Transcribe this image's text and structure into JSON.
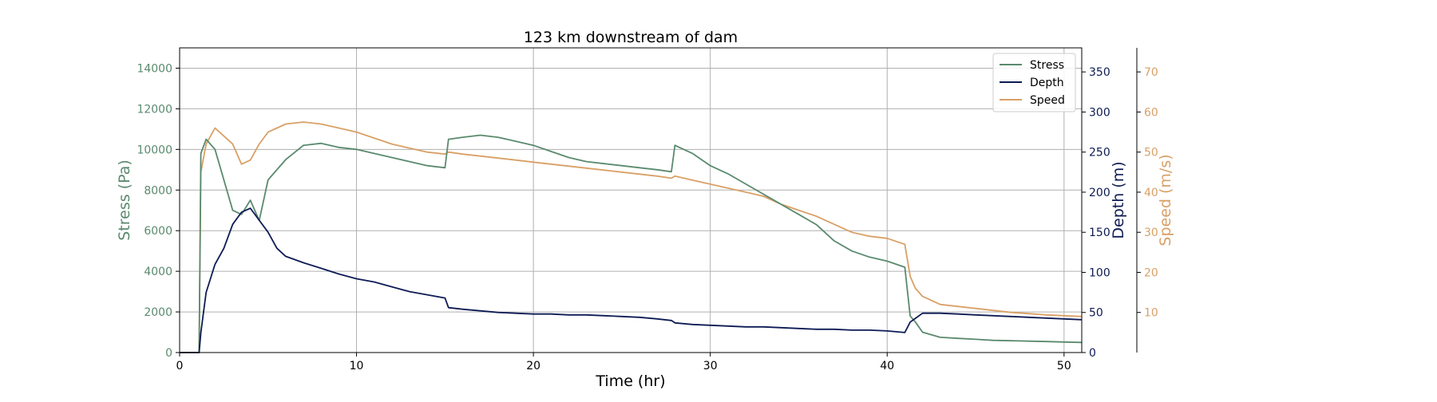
{
  "chart_data": {
    "type": "line",
    "title": "123 km downstream of dam",
    "xlabel": "Time (hr)",
    "xlim": [
      0,
      51
    ],
    "xticks": [
      0,
      10,
      20,
      30,
      40,
      50
    ],
    "grid": true,
    "legend_position": "top-right",
    "axes": {
      "stress": {
        "label": "Stress (Pa)",
        "ylim": [
          0,
          15000
        ],
        "ticks": [
          0,
          2000,
          4000,
          6000,
          8000,
          10000,
          12000,
          14000
        ],
        "color": "#5a8a6e"
      },
      "depth": {
        "label": "Depth (m)",
        "ylim": [
          0,
          380
        ],
        "ticks": [
          0,
          50,
          100,
          150,
          200,
          250,
          300,
          350
        ],
        "color": "#0d1b54"
      },
      "speed": {
        "label": "Speed (m/s)",
        "ylim": [
          0,
          76
        ],
        "ticks": [
          10,
          20,
          30,
          40,
          50,
          60,
          70
        ],
        "color": "#d9a066"
      }
    },
    "series": [
      {
        "name": "Stress",
        "axis": "stress",
        "color": "#5a8a6e",
        "x": [
          0,
          1.1,
          1.2,
          1.5,
          2.0,
          2.5,
          3.0,
          3.5,
          4.0,
          4.5,
          5.0,
          6.0,
          7.0,
          8.0,
          9.0,
          10.0,
          11.0,
          12.0,
          13.0,
          14.0,
          15.0,
          15.2,
          16.0,
          17.0,
          18.0,
          19.0,
          20.0,
          21.0,
          22.0,
          23.0,
          24.0,
          25.0,
          26.0,
          27.0,
          27.8,
          28.0,
          29.0,
          30.0,
          31.0,
          32.0,
          33.0,
          34.0,
          35.0,
          36.0,
          37.0,
          38.0,
          39.0,
          40.0,
          41.0,
          41.3,
          41.6,
          42.0,
          43.0,
          44.0,
          45.0,
          46.0,
          47.0,
          48.0,
          49.0,
          50.0,
          51.0
        ],
        "y": [
          0,
          0,
          9800,
          10500,
          10000,
          8500,
          7000,
          6800,
          7500,
          6500,
          8500,
          9500,
          10200,
          10300,
          10100,
          10000,
          9800,
          9600,
          9400,
          9200,
          9100,
          10500,
          10600,
          10700,
          10600,
          10400,
          10200,
          9900,
          9600,
          9400,
          9300,
          9200,
          9100,
          9000,
          8900,
          10200,
          9800,
          9200,
          8800,
          8300,
          7800,
          7300,
          6800,
          6300,
          5500,
          5000,
          4700,
          4500,
          4200,
          1800,
          1500,
          1000,
          750,
          700,
          650,
          600,
          580,
          560,
          540,
          520,
          500
        ]
      },
      {
        "name": "Depth",
        "axis": "depth",
        "color": "#0d1b54",
        "x": [
          0,
          1.1,
          1.2,
          1.5,
          2.0,
          2.5,
          3.0,
          3.5,
          4.0,
          4.5,
          5.0,
          5.5,
          6.0,
          7.0,
          8.0,
          9.0,
          10.0,
          11.0,
          12.0,
          13.0,
          14.0,
          15.0,
          15.2,
          16.0,
          17.0,
          18.0,
          19.0,
          20.0,
          21.0,
          22.0,
          23.0,
          24.0,
          25.0,
          26.0,
          27.0,
          27.8,
          28.0,
          29.0,
          30.0,
          31.0,
          32.0,
          33.0,
          34.0,
          35.0,
          36.0,
          37.0,
          38.0,
          39.0,
          40.0,
          41.0,
          41.3,
          42.0,
          43.0,
          44.0,
          45.0,
          46.0,
          47.0,
          48.0,
          49.0,
          50.0,
          51.0
        ],
        "y": [
          0,
          0,
          25,
          75,
          110,
          130,
          160,
          175,
          180,
          165,
          150,
          130,
          120,
          112,
          105,
          98,
          92,
          88,
          82,
          76,
          72,
          68,
          56,
          54,
          52,
          50,
          49,
          48,
          48,
          47,
          47,
          46,
          45,
          44,
          42,
          40,
          37,
          35,
          34,
          33,
          32,
          32,
          31,
          30,
          29,
          29,
          28,
          28,
          27,
          25,
          38,
          49,
          49,
          48,
          47,
          46,
          45,
          44,
          43,
          42,
          41
        ]
      },
      {
        "name": "Speed",
        "axis": "speed",
        "color": "#d9a066",
        "x": [
          0,
          1.1,
          1.2,
          1.5,
          2.0,
          2.5,
          3.0,
          3.5,
          4.0,
          4.5,
          5.0,
          5.5,
          6.0,
          7.0,
          8.0,
          9.0,
          10.0,
          11.0,
          12.0,
          13.0,
          14.0,
          15.0,
          15.2,
          16.0,
          17.0,
          18.0,
          19.0,
          20.0,
          21.0,
          22.0,
          23.0,
          24.0,
          25.0,
          26.0,
          27.0,
          27.8,
          28.0,
          29.0,
          30.0,
          31.0,
          32.0,
          33.0,
          34.0,
          35.0,
          36.0,
          37.0,
          38.0,
          39.0,
          40.0,
          41.0,
          41.3,
          41.6,
          42.0,
          43.0,
          44.0,
          45.0,
          46.0,
          47.0,
          48.0,
          49.0,
          50.0,
          51.0
        ],
        "y": [
          0,
          0,
          45,
          52,
          56,
          54,
          52,
          47,
          48,
          52,
          55,
          56,
          57,
          57.5,
          57,
          56,
          55,
          53.5,
          52,
          51,
          50,
          49.5,
          50,
          49.5,
          49,
          48.5,
          48,
          47.5,
          47,
          46.5,
          46,
          45.5,
          45,
          44.5,
          44,
          43.5,
          44,
          43,
          42,
          41,
          40,
          39,
          37,
          35.5,
          34,
          32,
          30,
          29,
          28.5,
          27,
          19,
          16,
          14,
          12,
          11.5,
          11,
          10.5,
          10,
          9.7,
          9.4,
          9.2,
          9.0
        ]
      }
    ]
  }
}
